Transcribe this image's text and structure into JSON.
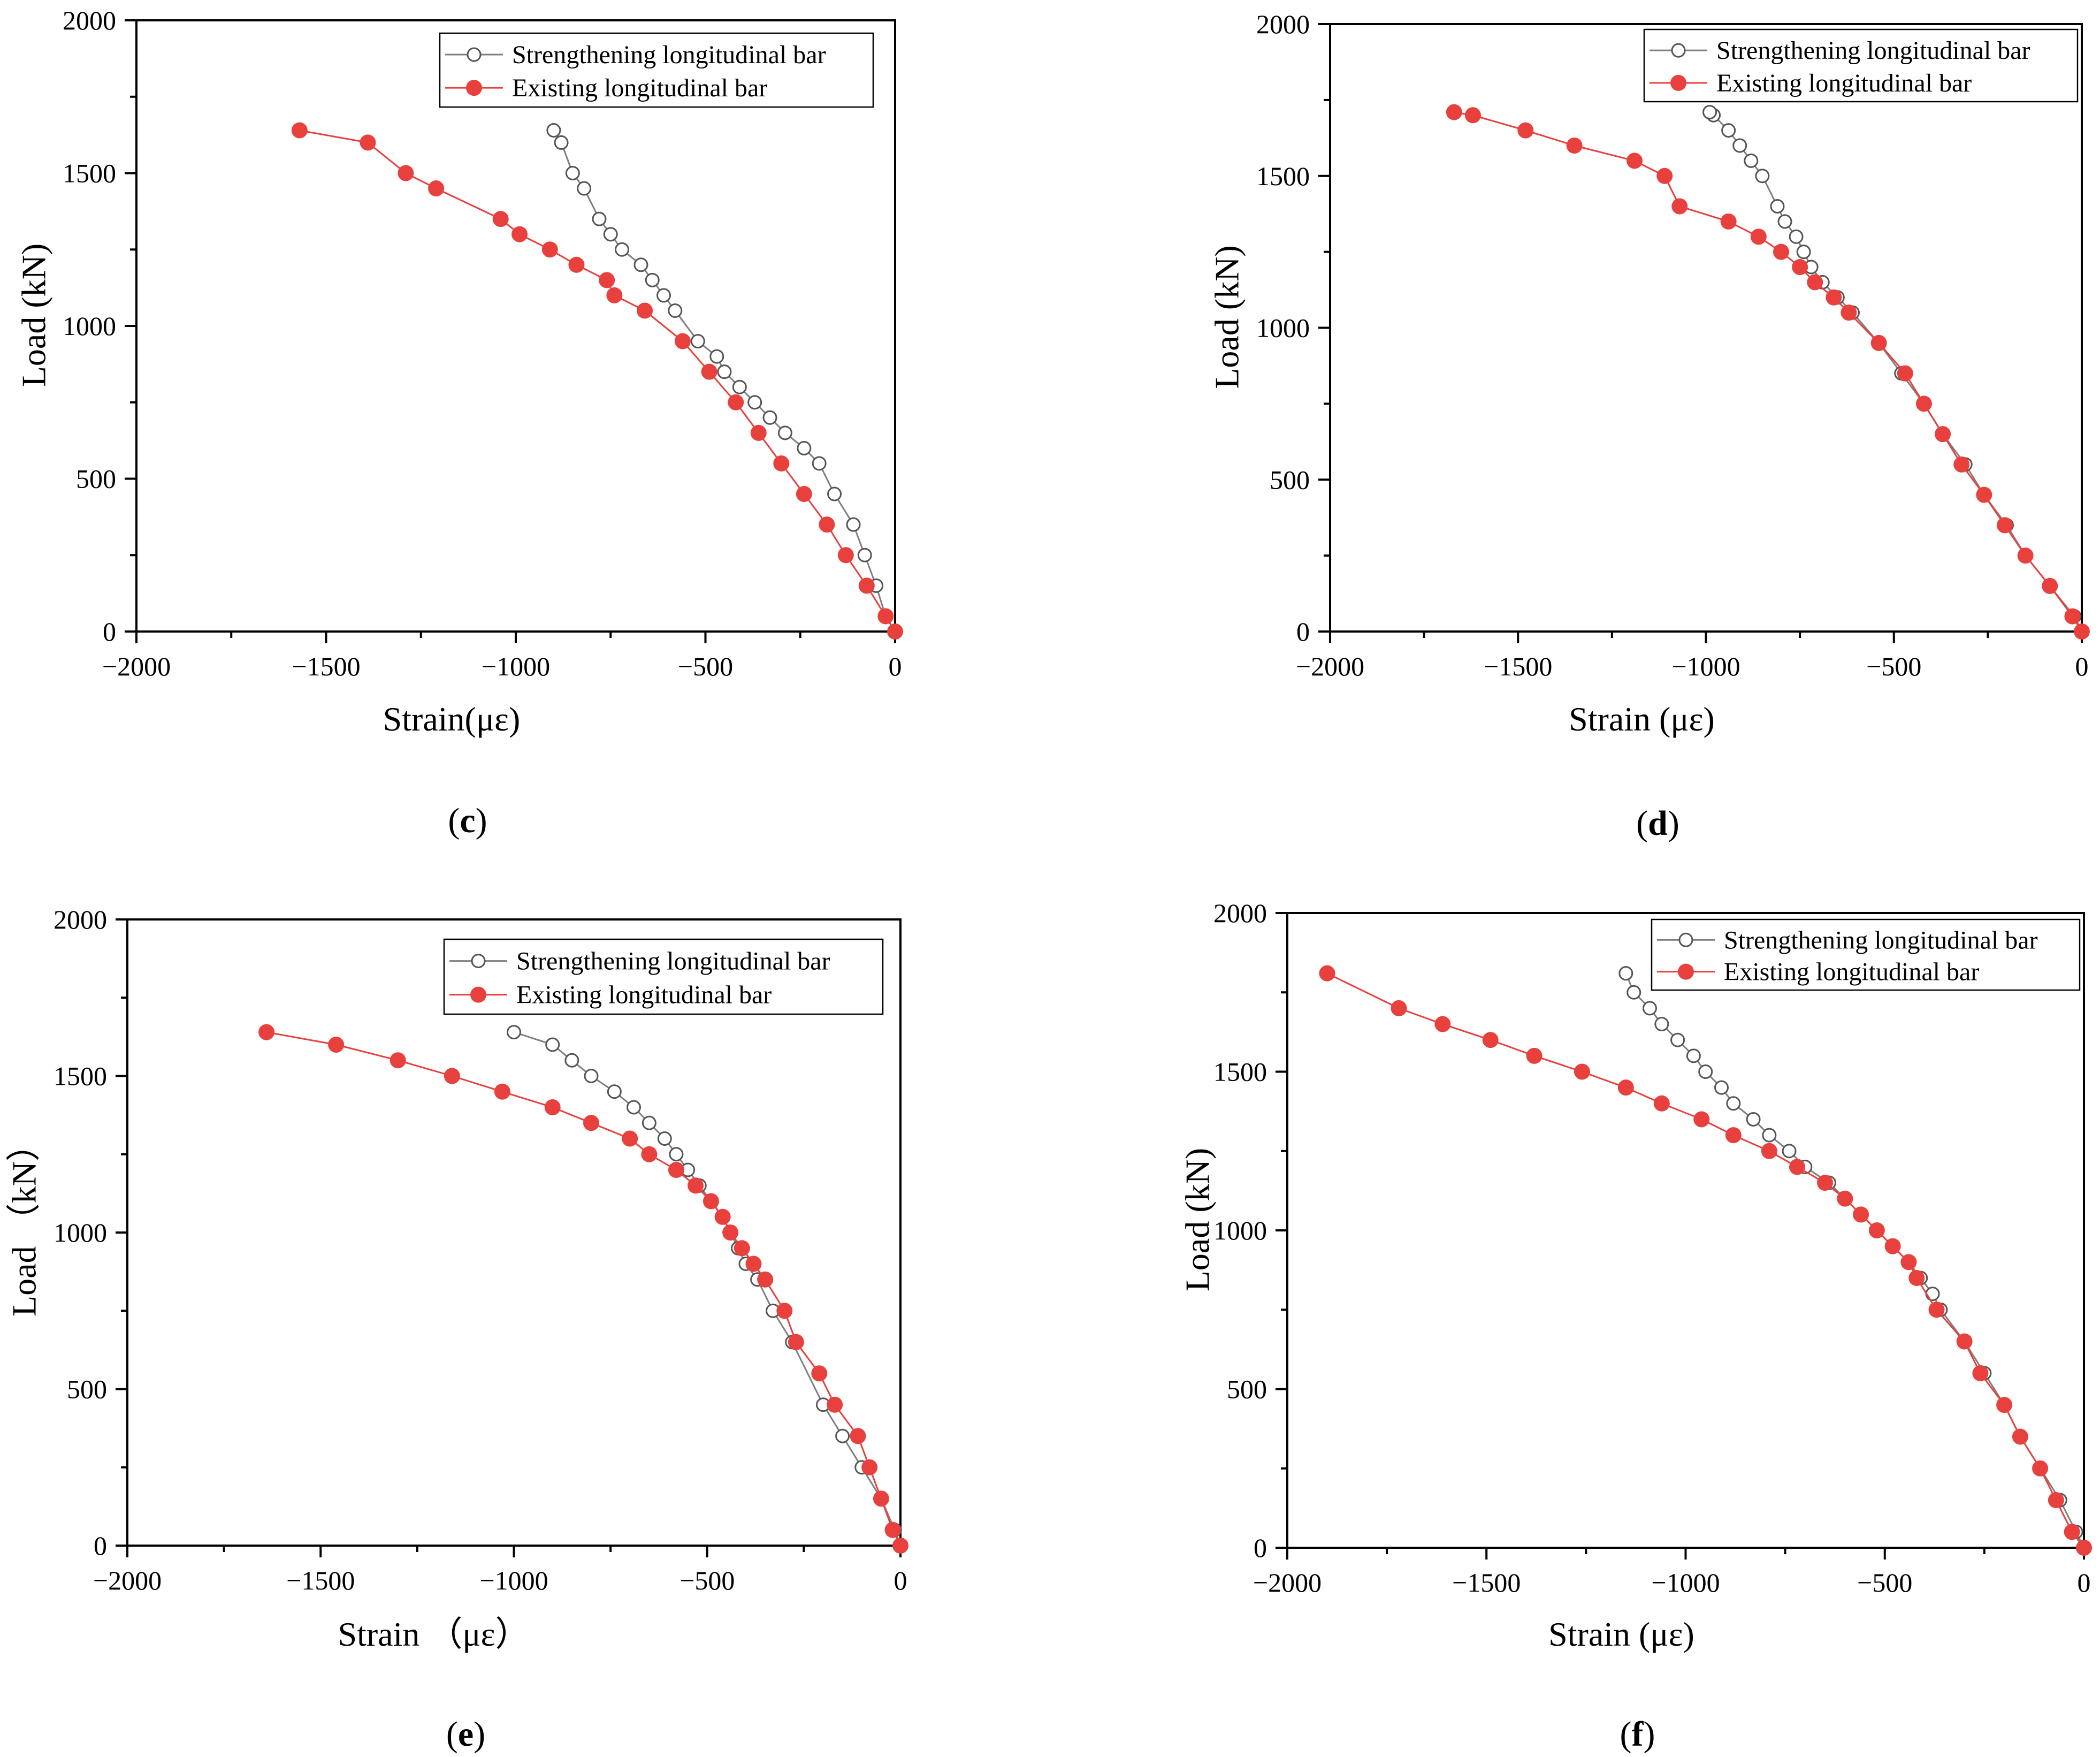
{
  "colors": {
    "strengthening_line": "#7f7f7f",
    "strengthening_marker_stroke": "#555555",
    "existing_line": "#e8403c",
    "existing_marker": "#e8403c"
  },
  "legend": {
    "strengthening": "Strengthening longitudinal bar",
    "existing": "Existing longitudinal bar"
  },
  "chart_data": [
    {
      "id": "c",
      "type": "line",
      "panel_label": "c",
      "xlabel": "Strain(με)",
      "ylabel": "Load (kN)",
      "xlim": [
        -2000,
        0
      ],
      "ylim": [
        0,
        2000
      ],
      "xticks": [
        "−2000",
        "−1500",
        "−1000",
        "−500",
        "0"
      ],
      "yticks": [
        "0",
        "500",
        "1000",
        "1500",
        "2000"
      ],
      "series": [
        {
          "name": "Strengthening longitudinal bar",
          "x": [
            0,
            -25,
            -50,
            -80,
            -110,
            -160,
            -200,
            -240,
            -290,
            -330,
            -370,
            -410,
            -450,
            -470,
            -520,
            -580,
            -610,
            -640,
            -670,
            -720,
            -750,
            -780,
            -820,
            -850,
            -880,
            -900
          ],
          "y": [
            0,
            50,
            150,
            250,
            350,
            450,
            550,
            600,
            650,
            700,
            750,
            800,
            850,
            900,
            950,
            1050,
            1100,
            1150,
            1200,
            1250,
            1300,
            1350,
            1450,
            1500,
            1600,
            1640
          ]
        },
        {
          "name": "Existing longitudinal bar",
          "x": [
            0,
            -25,
            -75,
            -130,
            -180,
            -240,
            -300,
            -360,
            -420,
            -490,
            -560,
            -660,
            -740,
            -760,
            -840,
            -910,
            -990,
            -1040,
            -1210,
            -1290,
            -1390,
            -1570
          ],
          "y": [
            0,
            50,
            150,
            250,
            350,
            450,
            550,
            650,
            750,
            850,
            950,
            1050,
            1100,
            1150,
            1200,
            1250,
            1300,
            1350,
            1450,
            1500,
            1600,
            1640
          ]
        }
      ]
    },
    {
      "id": "d",
      "type": "line",
      "panel_label": "d",
      "xlabel": "Strain (με)",
      "ylabel": "Load (kN)",
      "xlim": [
        -2000,
        0
      ],
      "ylim": [
        0,
        2000
      ],
      "xticks": [
        "−2000",
        "−1500",
        "−1000",
        "−500",
        "0"
      ],
      "yticks": [
        "0",
        "500",
        "1000",
        "1500",
        "2000"
      ],
      "series": [
        {
          "name": "Strengthening longitudinal bar",
          "x": [
            0,
            -20,
            -85,
            -150,
            -200,
            -260,
            -310,
            -370,
            -420,
            -480,
            -540,
            -610,
            -650,
            -690,
            -720,
            -740,
            -760,
            -790,
            -810,
            -850,
            -880,
            -910,
            -940,
            -980,
            -990
          ],
          "y": [
            0,
            50,
            150,
            250,
            350,
            450,
            550,
            650,
            750,
            850,
            950,
            1050,
            1100,
            1150,
            1200,
            1250,
            1300,
            1350,
            1400,
            1500,
            1550,
            1600,
            1650,
            1700,
            1710
          ]
        },
        {
          "name": "Existing longitudinal bar",
          "x": [
            0,
            -25,
            -85,
            -150,
            -205,
            -260,
            -320,
            -370,
            -420,
            -470,
            -540,
            -620,
            -660,
            -710,
            -750,
            -800,
            -860,
            -940,
            -1070,
            -1110,
            -1190,
            -1350,
            -1480,
            -1620,
            -1670
          ],
          "y": [
            0,
            50,
            150,
            250,
            350,
            450,
            550,
            650,
            750,
            850,
            950,
            1050,
            1100,
            1150,
            1200,
            1250,
            1300,
            1350,
            1400,
            1500,
            1550,
            1600,
            1650,
            1700,
            1710
          ]
        }
      ]
    },
    {
      "id": "e",
      "type": "line",
      "panel_label": "e",
      "xlabel": "Strain （με）",
      "ylabel": "Load （kN）",
      "xlim": [
        -2000,
        0
      ],
      "ylim": [
        0,
        2000
      ],
      "xticks": [
        "−2000",
        "−1500",
        "−1000",
        "−500",
        "0"
      ],
      "yticks": [
        "0",
        "500",
        "1000",
        "1500",
        "2000"
      ],
      "series": [
        {
          "name": "Strengthening longitudinal bar",
          "x": [
            0,
            -15,
            -50,
            -100,
            -150,
            -200,
            -280,
            -330,
            -370,
            -400,
            -420,
            -440,
            -460,
            -520,
            -550,
            -580,
            -610,
            -650,
            -690,
            -740,
            -800,
            -850,
            -900,
            -1000
          ],
          "y": [
            0,
            50,
            150,
            250,
            350,
            450,
            650,
            750,
            850,
            900,
            950,
            1000,
            1050,
            1150,
            1200,
            1250,
            1300,
            1350,
            1400,
            1450,
            1500,
            1550,
            1600,
            1640
          ]
        },
        {
          "name": "Existing longitudinal bar",
          "x": [
            0,
            -20,
            -50,
            -80,
            -110,
            -170,
            -210,
            -270,
            -300,
            -350,
            -380,
            -410,
            -440,
            -460,
            -490,
            -530,
            -580,
            -650,
            -700,
            -800,
            -900,
            -1030,
            -1160,
            -1300,
            -1460,
            -1640
          ],
          "y": [
            0,
            50,
            150,
            250,
            350,
            450,
            550,
            650,
            750,
            850,
            900,
            950,
            1000,
            1050,
            1100,
            1150,
            1200,
            1250,
            1300,
            1350,
            1400,
            1450,
            1500,
            1550,
            1600,
            1640
          ]
        }
      ]
    },
    {
      "id": "f",
      "type": "line",
      "panel_label": "f",
      "xlabel": "Strain (με)",
      "ylabel": "Load (kN)",
      "xlim": [
        -2000,
        0
      ],
      "ylim": [
        0,
        2000
      ],
      "xticks": [
        "−2000",
        "−1500",
        "−1000",
        "−500",
        "0"
      ],
      "yticks": [
        "0",
        "500",
        "1000",
        "1500",
        "2000"
      ],
      "series": [
        {
          "name": "Strengthening longitudinal bar",
          "x": [
            0,
            -20,
            -60,
            -110,
            -160,
            -200,
            -250,
            -300,
            -360,
            -380,
            -410,
            -440,
            -480,
            -520,
            -560,
            -600,
            -640,
            -700,
            -740,
            -790,
            -830,
            -880,
            -910,
            -950,
            -980,
            -1020,
            -1060,
            -1090,
            -1130,
            -1150
          ],
          "y": [
            0,
            50,
            150,
            250,
            350,
            450,
            550,
            650,
            750,
            800,
            850,
            900,
            950,
            1000,
            1050,
            1100,
            1150,
            1200,
            1250,
            1300,
            1350,
            1400,
            1450,
            1500,
            1550,
            1600,
            1650,
            1700,
            1750,
            1810
          ]
        },
        {
          "name": "Existing longitudinal bar",
          "x": [
            0,
            -30,
            -70,
            -110,
            -160,
            -200,
            -260,
            -300,
            -370,
            -420,
            -440,
            -480,
            -520,
            -560,
            -600,
            -650,
            -720,
            -790,
            -880,
            -960,
            -1060,
            -1150,
            -1260,
            -1380,
            -1490,
            -1610,
            -1720,
            -1900
          ],
          "y": [
            0,
            50,
            150,
            250,
            350,
            450,
            550,
            650,
            750,
            850,
            900,
            950,
            1000,
            1050,
            1100,
            1150,
            1200,
            1250,
            1300,
            1350,
            1400,
            1450,
            1500,
            1550,
            1600,
            1650,
            1700,
            1810
          ]
        }
      ]
    }
  ]
}
